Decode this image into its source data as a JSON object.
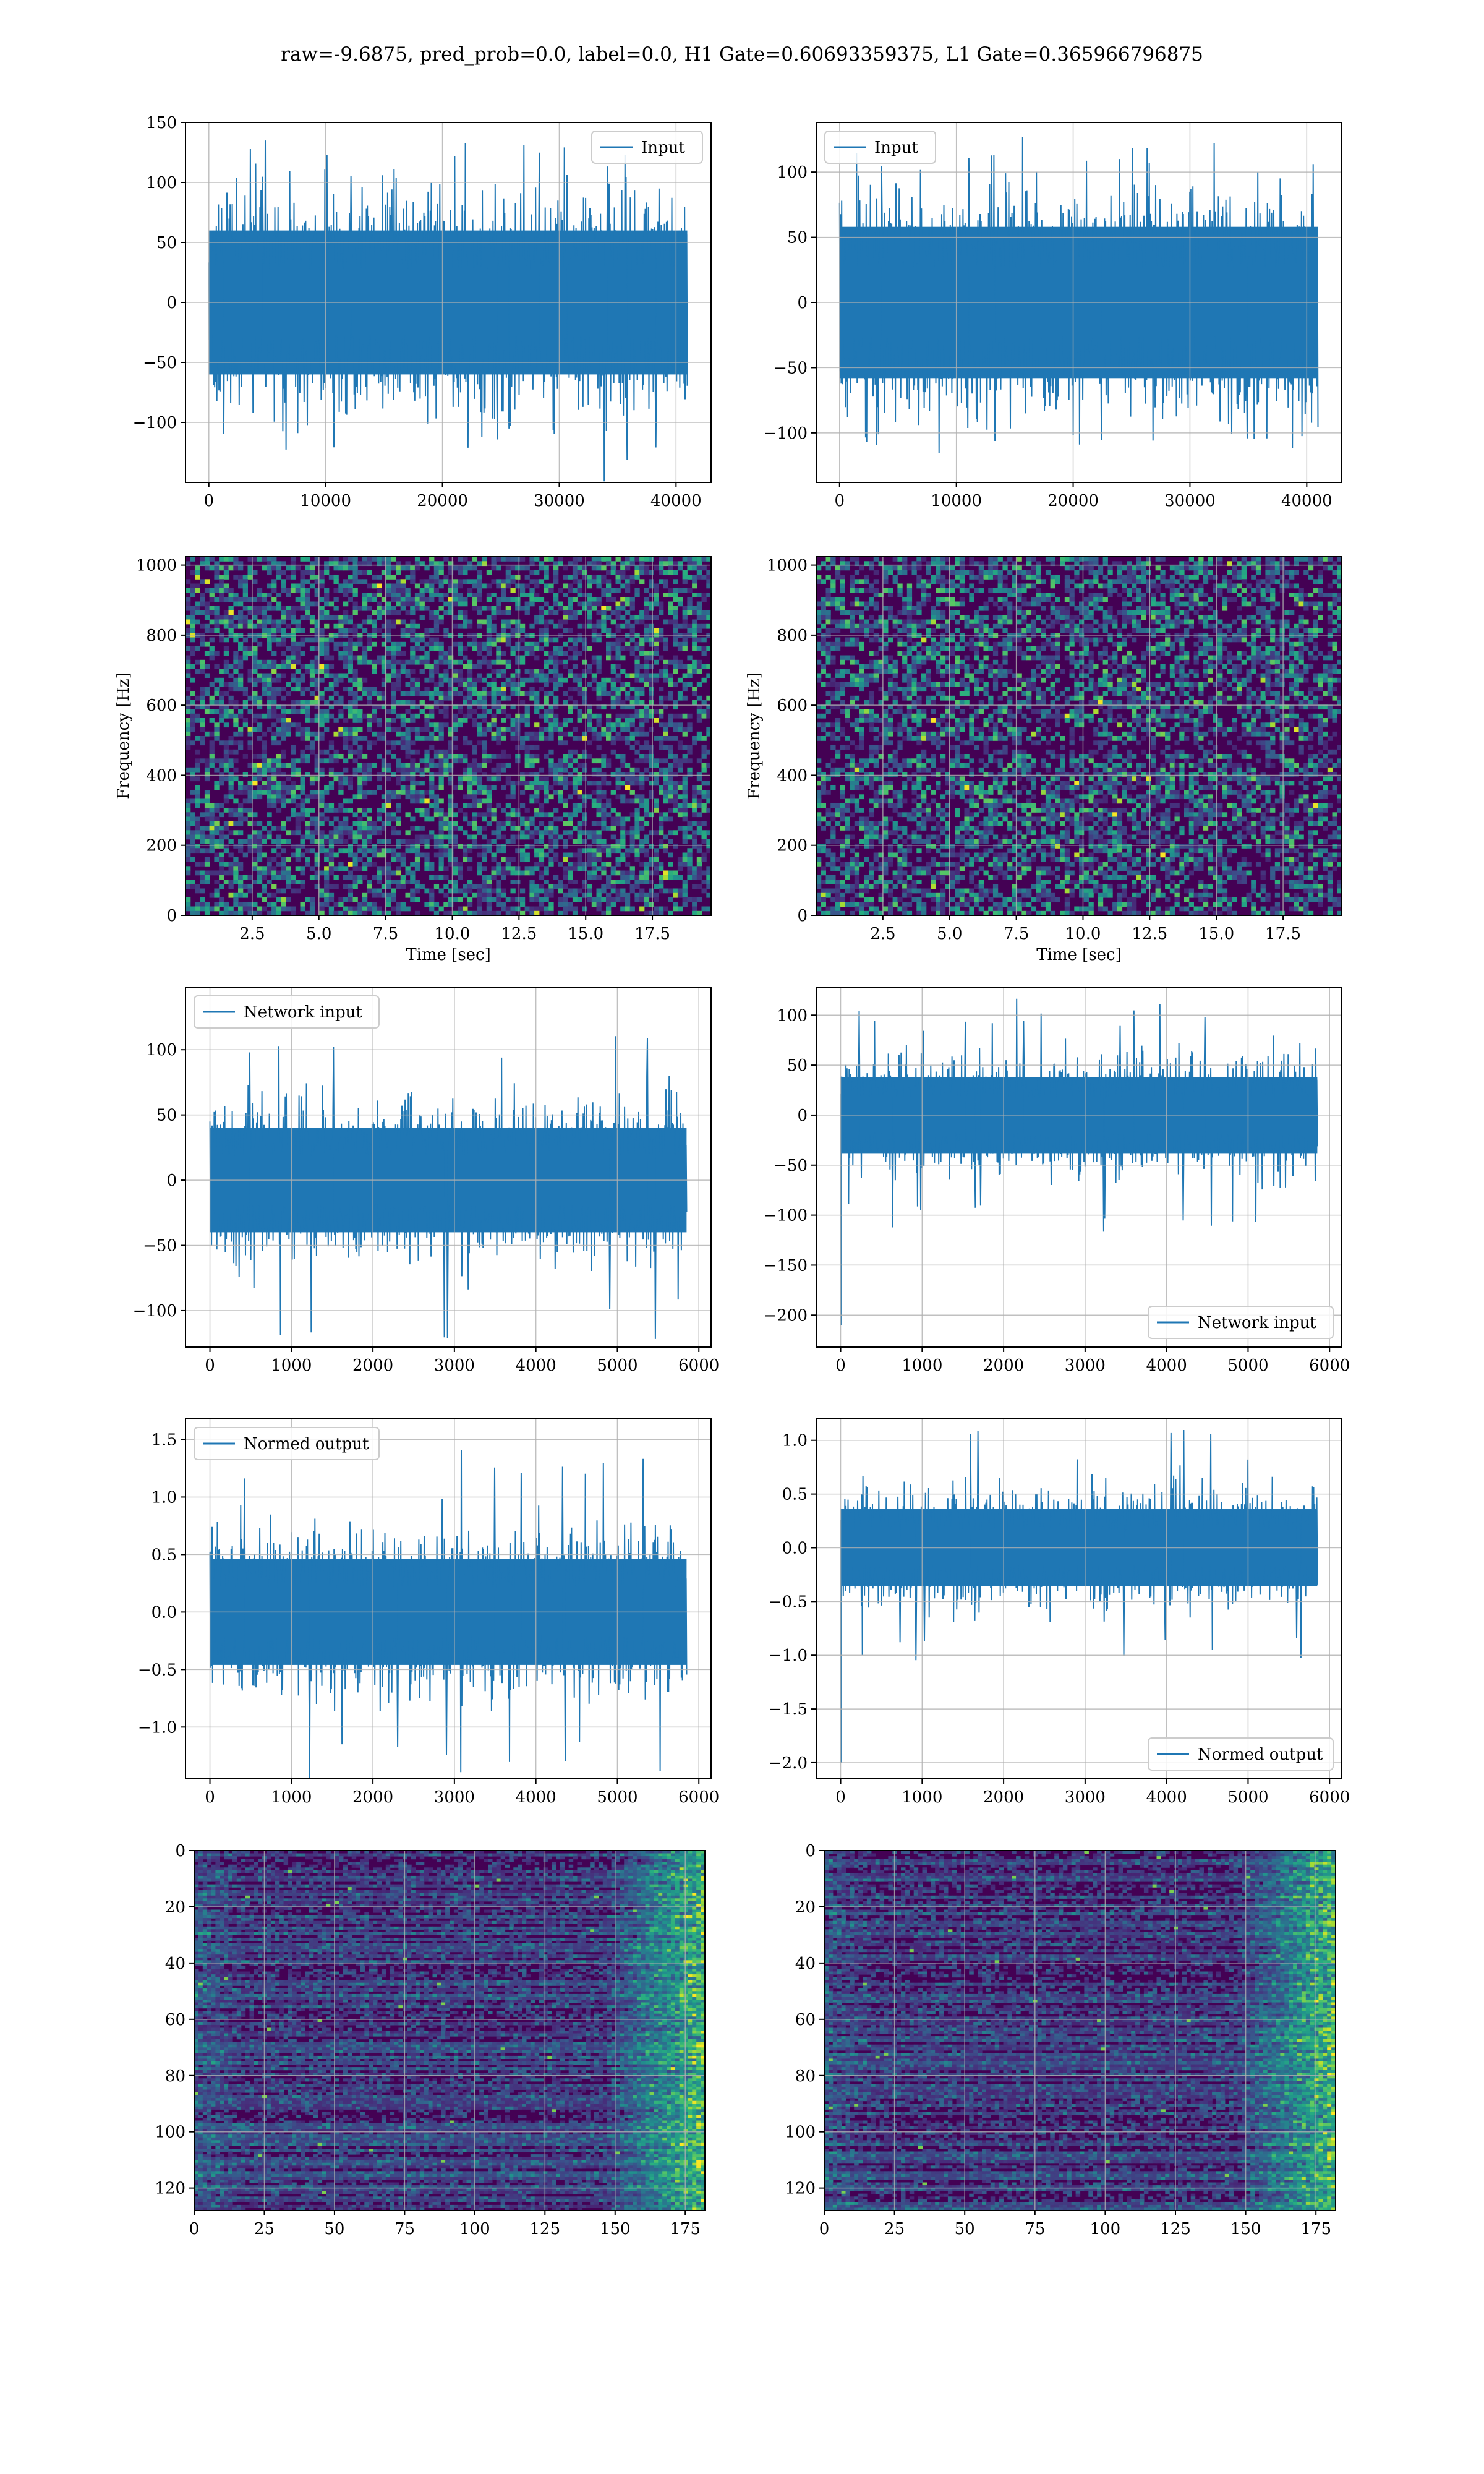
{
  "suptitle": "raw=-9.6875, pred_prob=0.0, label=0.0, H1 Gate=0.60693359375, L1 Gate=0.365966796875",
  "colors": {
    "line": "#1f77b4",
    "grid": "#b0b0b0",
    "viridis_dark": "#440154",
    "viridis_mid": "#21918c",
    "viridis_bright": "#fde725"
  },
  "chart_data": [
    {
      "type": "line",
      "panel": "row1-left",
      "series": [
        {
          "name": "Input",
          "values": "noise band, mostly within ±70, peaks ~±140"
        }
      ],
      "xlim": [
        -2000,
        43000
      ],
      "ylim": [
        -150,
        150
      ],
      "xticks": [
        0,
        10000,
        20000,
        30000,
        40000
      ],
      "yticks": [
        -100,
        -50,
        0,
        50,
        100,
        150
      ],
      "xticklabels": [
        "0",
        "10000",
        "20000",
        "30000",
        "40000"
      ],
      "yticklabels": [
        "−100",
        "−50",
        "0",
        "50",
        "100",
        "150"
      ],
      "signal": {
        "x_end": 40960,
        "band": 60,
        "peak": 137,
        "spike_at_start": null
      },
      "legend": "upper right",
      "grid": true
    },
    {
      "type": "line",
      "panel": "row1-right",
      "series": [
        {
          "name": "Input",
          "values": "noise band, mostly within ±70, peaks ~±120"
        }
      ],
      "xlim": [
        -2000,
        43000
      ],
      "ylim": [
        -138,
        138
      ],
      "xticks": [
        0,
        10000,
        20000,
        30000,
        40000
      ],
      "yticks": [
        -100,
        -50,
        0,
        50,
        100
      ],
      "xticklabels": [
        "0",
        "10000",
        "20000",
        "30000",
        "40000"
      ],
      "yticklabels": [
        "−100",
        "−50",
        "0",
        "50",
        "100"
      ],
      "signal": {
        "x_end": 40960,
        "band": 58,
        "peak": 118,
        "spike_at_start": null
      },
      "legend": "upper left",
      "grid": true
    },
    {
      "type": "heatmap",
      "panel": "row2-left",
      "colormap": "viridis",
      "xlabel": "Time [sec]",
      "ylabel": "Frequency [Hz]",
      "xlim": [
        0,
        19.7
      ],
      "ylim": [
        0,
        1024
      ],
      "xticks": [
        2.5,
        5.0,
        7.5,
        10.0,
        12.5,
        15.0,
        17.5
      ],
      "yticks": [
        0,
        200,
        400,
        600,
        800,
        1000
      ],
      "xticklabels": [
        "2.5",
        "5.0",
        "7.5",
        "10.0",
        "12.5",
        "15.0",
        "17.5"
      ],
      "yticklabels": [
        "0",
        "200",
        "400",
        "600",
        "800",
        "1000"
      ],
      "pattern": "spectrogram",
      "seed": 11,
      "grid": true
    },
    {
      "type": "heatmap",
      "panel": "row2-right",
      "colormap": "viridis",
      "xlabel": "Time [sec]",
      "ylabel": "Frequency [Hz]",
      "xlim": [
        0,
        19.7
      ],
      "ylim": [
        0,
        1024
      ],
      "xticks": [
        2.5,
        5.0,
        7.5,
        10.0,
        12.5,
        15.0,
        17.5
      ],
      "yticks": [
        0,
        200,
        400,
        600,
        800,
        1000
      ],
      "xticklabels": [
        "2.5",
        "5.0",
        "7.5",
        "10.0",
        "12.5",
        "15.0",
        "17.5"
      ],
      "yticklabels": [
        "0",
        "200",
        "400",
        "600",
        "800",
        "1000"
      ],
      "pattern": "spectrogram",
      "seed": 23,
      "grid": true
    },
    {
      "type": "line",
      "panel": "row3-left",
      "series": [
        {
          "name": "Network input",
          "values": "noise band, mostly within ±45, peaks ~±125"
        }
      ],
      "xlim": [
        -300,
        6150
      ],
      "ylim": [
        -128,
        148
      ],
      "xticks": [
        0,
        1000,
        2000,
        3000,
        4000,
        5000,
        6000
      ],
      "yticks": [
        -100,
        -50,
        0,
        50,
        100
      ],
      "xticklabels": [
        "0",
        "1000",
        "2000",
        "3000",
        "4000",
        "5000",
        "6000"
      ],
      "yticklabels": [
        "−100",
        "−50",
        "0",
        "50",
        "100"
      ],
      "signal": {
        "x_end": 5850,
        "band": 40,
        "peak": 125,
        "spike_at_start": null
      },
      "legend": "upper left",
      "grid": true
    },
    {
      "type": "line",
      "panel": "row3-right",
      "series": [
        {
          "name": "Network input",
          "values": "noise band, mostly within ±45, peaks ~±120, initial spike to ~−210"
        }
      ],
      "xlim": [
        -300,
        6150
      ],
      "ylim": [
        -232,
        128
      ],
      "xticks": [
        0,
        1000,
        2000,
        3000,
        4000,
        5000,
        6000
      ],
      "yticks": [
        -200,
        -150,
        -100,
        -50,
        0,
        50,
        100
      ],
      "xticklabels": [
        "0",
        "1000",
        "2000",
        "3000",
        "4000",
        "5000",
        "6000"
      ],
      "yticklabels": [
        "−200",
        "−150",
        "−100",
        "−50",
        "0",
        "50",
        "100"
      ],
      "signal": {
        "x_end": 5850,
        "band": 38,
        "peak": 118,
        "spike_at_start": -210
      },
      "legend": "lower right",
      "grid": true
    },
    {
      "type": "line",
      "panel": "row4-left",
      "series": [
        {
          "name": "Normed output",
          "values": "noise band, mostly within ±0.55, peaks ~±1.5"
        }
      ],
      "xlim": [
        -300,
        6150
      ],
      "ylim": [
        -1.45,
        1.68
      ],
      "xticks": [
        0,
        1000,
        2000,
        3000,
        4000,
        5000,
        6000
      ],
      "yticks": [
        -1.0,
        -0.5,
        0.0,
        0.5,
        1.0,
        1.5
      ],
      "xticklabels": [
        "0",
        "1000",
        "2000",
        "3000",
        "4000",
        "5000",
        "6000"
      ],
      "yticklabels": [
        "−1.0",
        "−0.5",
        "0.0",
        "0.5",
        "1.0",
        "1.5"
      ],
      "signal": {
        "x_end": 5850,
        "band": 0.46,
        "peak": 1.5,
        "spike_at_start": null
      },
      "legend": "upper left",
      "grid": true
    },
    {
      "type": "line",
      "panel": "row4-right",
      "series": [
        {
          "name": "Normed output",
          "values": "noise band, mostly within ±0.45, peaks ~±1.1, initial spike to ~−2.0"
        }
      ],
      "xlim": [
        -300,
        6150
      ],
      "ylim": [
        -2.15,
        1.2
      ],
      "xticks": [
        0,
        1000,
        2000,
        3000,
        4000,
        5000,
        6000
      ],
      "yticks": [
        -2.0,
        -1.5,
        -1.0,
        -0.5,
        0.0,
        0.5,
        1.0
      ],
      "xticklabels": [
        "0",
        "1000",
        "2000",
        "3000",
        "4000",
        "5000",
        "6000"
      ],
      "yticklabels": [
        "−2.0",
        "−1.5",
        "−1.0",
        "−0.5",
        "0.0",
        "0.5",
        "1.0"
      ],
      "signal": {
        "x_end": 5850,
        "band": 0.36,
        "peak": 1.1,
        "spike_at_start": -2.0
      },
      "legend": "lower right",
      "grid": true
    },
    {
      "type": "heatmap",
      "panel": "row5-left",
      "colormap": "viridis",
      "xlabel": "",
      "ylabel": "",
      "xlim": [
        0,
        182
      ],
      "ylim": [
        128,
        0
      ],
      "xticks": [
        0,
        25,
        50,
        75,
        100,
        125,
        150,
        175
      ],
      "yticks": [
        0,
        20,
        40,
        60,
        80,
        100,
        120
      ],
      "xticklabels": [
        "0",
        "25",
        "50",
        "75",
        "100",
        "125",
        "150",
        "175"
      ],
      "yticklabels": [
        "0",
        "20",
        "40",
        "60",
        "80",
        "100",
        "120"
      ],
      "pattern": "activation",
      "seed": 37,
      "grid": true
    },
    {
      "type": "heatmap",
      "panel": "row5-right",
      "colormap": "viridis",
      "xlabel": "",
      "ylabel": "",
      "xlim": [
        0,
        182
      ],
      "ylim": [
        128,
        0
      ],
      "xticks": [
        0,
        25,
        50,
        75,
        100,
        125,
        150,
        175
      ],
      "yticks": [
        0,
        20,
        40,
        60,
        80,
        100,
        120
      ],
      "xticklabels": [
        "0",
        "25",
        "50",
        "75",
        "100",
        "125",
        "150",
        "175"
      ],
      "yticklabels": [
        "0",
        "20",
        "40",
        "60",
        "80",
        "100",
        "120"
      ],
      "pattern": "activation",
      "seed": 53,
      "grid": true
    }
  ]
}
